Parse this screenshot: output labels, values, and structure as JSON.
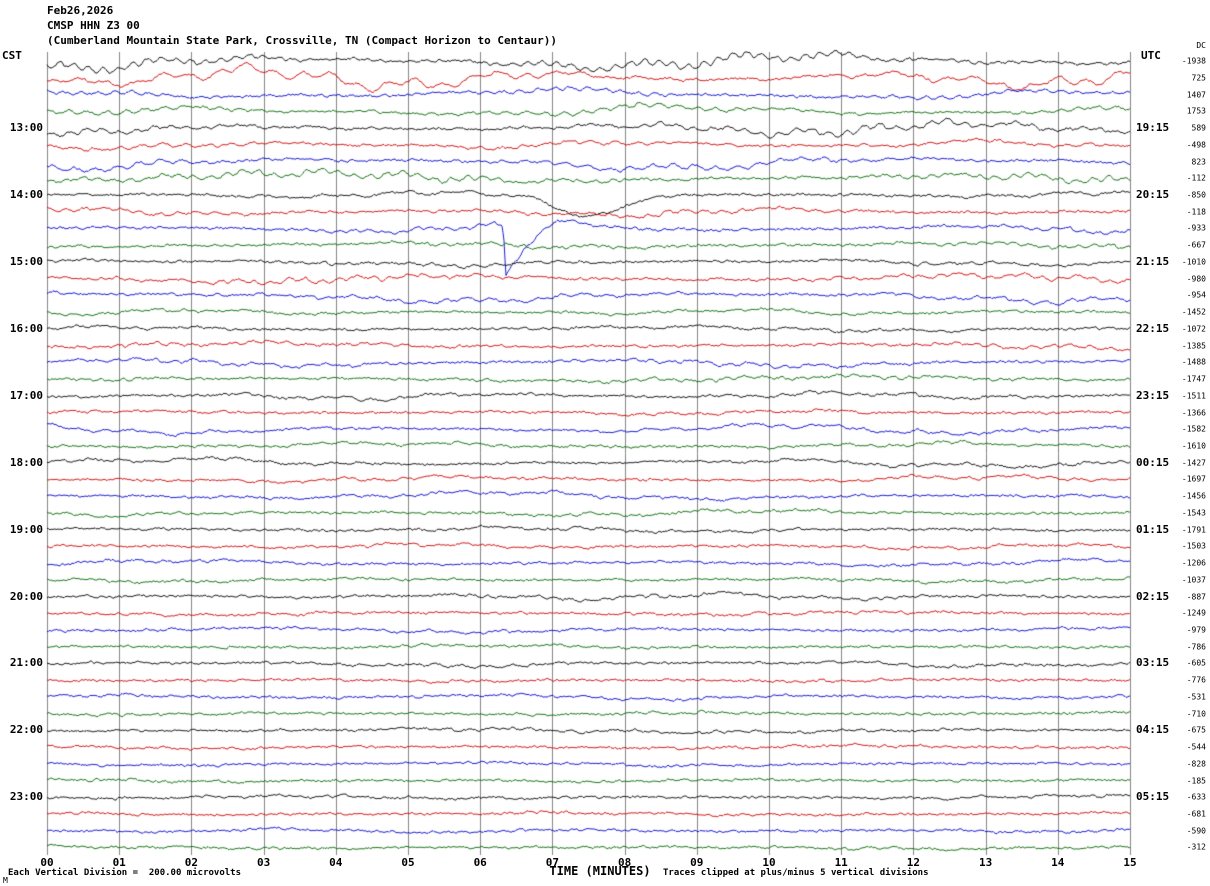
{
  "header": {
    "date": "Feb26,2026",
    "station": "CMSP HHN Z3 00",
    "description": "(Cumberland Mountain State Park, Crossville, TN (Compact Horizon to Centaur))"
  },
  "axes": {
    "left_label": "CST",
    "right_label": "UTC",
    "dc_label": "DC",
    "xlabel": "TIME (MINUTES)"
  },
  "footer": {
    "scale_note": "Each Vertical Division =  200.00 microvolts",
    "clip_note": "Traces clipped at plus/minus 5 vertical divisions",
    "corner_mark": "M"
  },
  "chart_data": {
    "type": "line",
    "title": "CMSP HHN Z3 00 helicorder record, Feb26,2026",
    "num_lines": 48,
    "minutes_per_line": 15,
    "x_range_minutes": [
      0,
      15
    ],
    "grid": "vertical gridline every 1 minute",
    "legend_position": "none",
    "trace_colors": [
      "#000000",
      "#cc0000",
      "#0000cc",
      "#006600"
    ],
    "x_ticks": [
      "00",
      "01",
      "02",
      "03",
      "04",
      "05",
      "06",
      "07",
      "08",
      "09",
      "10",
      "11",
      "12",
      "13",
      "14",
      "15"
    ],
    "left_time_labels": [
      "13:00",
      "14:00",
      "15:00",
      "16:00",
      "17:00",
      "18:00",
      "19:00",
      "20:00",
      "21:00",
      "22:00",
      "23:00"
    ],
    "right_time_labels": [
      "19:15",
      "20:15",
      "21:15",
      "22:15",
      "23:15",
      "00:15",
      "01:15",
      "02:15",
      "03:15",
      "04:15",
      "05:15"
    ],
    "hour_label_rows": [
      4,
      8,
      12,
      16,
      20,
      24,
      28,
      32,
      36,
      40,
      44
    ],
    "dc_offsets": [
      -1938,
      725,
      1407,
      1753,
      589,
      -498,
      823,
      -112,
      -850,
      -118,
      -933,
      -667,
      -1010,
      -980,
      -954,
      -1452,
      -1072,
      -1385,
      -1488,
      -1747,
      -1511,
      -1366,
      -1582,
      -1610,
      -1427,
      -1697,
      -1456,
      -1543,
      -1791,
      -1503,
      -1206,
      -1037,
      -887,
      -1249,
      -979,
      -786,
      -605,
      -776,
      -531,
      -710,
      -675,
      -544,
      -828,
      -185,
      -633,
      -681,
      -590,
      -312
    ],
    "vertical_division_microvolts": 200.0,
    "clip_divisions": 5,
    "events": [
      {
        "row": 10,
        "minute": 6.35,
        "type": "calibration-spike",
        "direction": "down"
      },
      {
        "row": 8,
        "minute": 7.5,
        "type": "slow-dip",
        "direction": "down"
      }
    ]
  }
}
